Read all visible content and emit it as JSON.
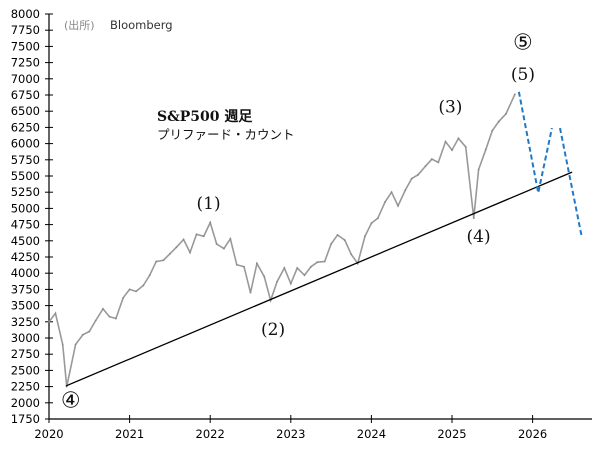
{
  "chart_data": {
    "type": "line",
    "source_label": "(出所)",
    "source": "Bloomberg",
    "title": "S&P500 週足",
    "subtitle": "プリファード・カウント",
    "xlim": [
      2020,
      2026.7
    ],
    "ylim": [
      1750,
      8000
    ],
    "x_ticks": [
      "2020",
      "2021",
      "2022",
      "2023",
      "2024",
      "2025",
      "2026"
    ],
    "y_ticks": [
      1750,
      2000,
      2250,
      2500,
      2750,
      3000,
      3250,
      3500,
      3750,
      4000,
      4250,
      4500,
      4750,
      5000,
      5250,
      5500,
      5750,
      6000,
      6250,
      6500,
      6750,
      7000,
      7250,
      7500,
      7750,
      8000
    ],
    "grid": false,
    "price_series": {
      "color": "#999999",
      "x": [
        2020.0,
        2020.08,
        2020.17,
        2020.22,
        2020.33,
        2020.42,
        2020.5,
        2020.58,
        2020.67,
        2020.75,
        2020.83,
        2020.92,
        2021.0,
        2021.08,
        2021.17,
        2021.25,
        2021.33,
        2021.42,
        2021.5,
        2021.58,
        2021.67,
        2021.75,
        2021.83,
        2021.92,
        2022.0,
        2022.08,
        2022.17,
        2022.25,
        2022.33,
        2022.42,
        2022.5,
        2022.58,
        2022.67,
        2022.75,
        2022.83,
        2022.92,
        2023.0,
        2023.08,
        2023.17,
        2023.25,
        2023.33,
        2023.42,
        2023.5,
        2023.58,
        2023.67,
        2023.75,
        2023.83,
        2023.92,
        2024.0,
        2024.08,
        2024.17,
        2024.25,
        2024.33,
        2024.42,
        2024.5,
        2024.58,
        2024.67,
        2024.75,
        2024.83,
        2024.92,
        2025.0,
        2025.08,
        2025.17,
        2025.27,
        2025.33,
        2025.42,
        2025.5,
        2025.58,
        2025.67,
        2025.78
      ],
      "close": [
        3250,
        3380,
        2900,
        2250,
        2900,
        3050,
        3100,
        3270,
        3450,
        3330,
        3300,
        3620,
        3750,
        3720,
        3810,
        3970,
        4180,
        4200,
        4300,
        4400,
        4520,
        4320,
        4600,
        4570,
        4780,
        4450,
        4380,
        4530,
        4130,
        4100,
        3700,
        4150,
        3950,
        3580,
        3870,
        4080,
        3840,
        4080,
        3970,
        4100,
        4170,
        4180,
        4450,
        4590,
        4510,
        4290,
        4150,
        4570,
        4770,
        4850,
        5100,
        5250,
        5040,
        5280,
        5460,
        5520,
        5650,
        5760,
        5710,
        6030,
        5900,
        6080,
        5950,
        4850,
        5600,
        5910,
        6200,
        6340,
        6460,
        6760
      ]
    },
    "trendline": {
      "color": "#000000",
      "x": [
        2020.21,
        2026.49
      ],
      "y": [
        2260,
        5560
      ]
    },
    "forecast": {
      "color": "#1f78c8",
      "style": "dashed",
      "segments": [
        {
          "x": [
            2025.83,
            2026.07,
            2026.24
          ],
          "y": [
            6800,
            5240,
            6240
          ]
        },
        {
          "x": [
            2026.34,
            2026.61
          ],
          "y": [
            6240,
            4560
          ]
        }
      ]
    },
    "annotations": [
      {
        "text": "④",
        "x": 2020.27,
        "y": 1930
      },
      {
        "text": "(1)",
        "x": 2021.98,
        "y": 4990
      },
      {
        "text": "(2)",
        "x": 2022.78,
        "y": 3050
      },
      {
        "text": "(3)",
        "x": 2024.98,
        "y": 6480
      },
      {
        "text": "(4)",
        "x": 2025.33,
        "y": 4480
      },
      {
        "text": "(5)",
        "x": 2025.88,
        "y": 6980
      },
      {
        "text": "⑤",
        "x": 2025.88,
        "y": 7450
      }
    ]
  }
}
